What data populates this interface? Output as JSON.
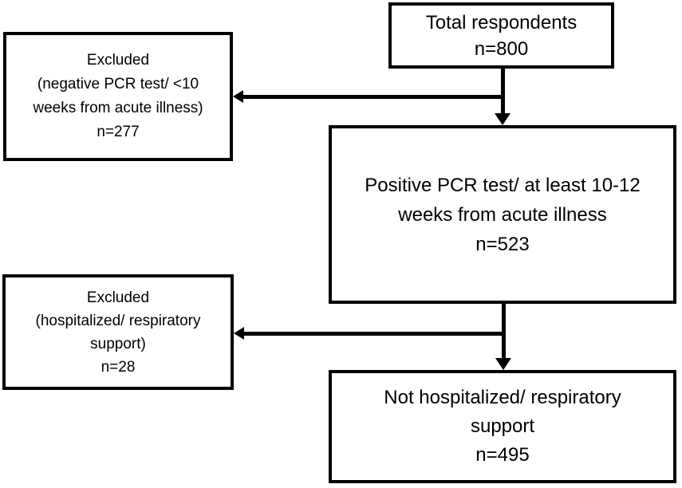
{
  "diagram_type": "participant-flowchart",
  "colors": {
    "background": "#ffffff",
    "box_border": "#000000",
    "text": "#000000",
    "arrow": "#000000"
  },
  "nodes": {
    "total_respondents": {
      "lines": [
        "Total respondents",
        "n=800"
      ]
    },
    "excluded_pcr": {
      "lines": [
        "Excluded",
        "(negative PCR test/ <10",
        "weeks from acute illness)",
        "n=277"
      ]
    },
    "positive_pcr": {
      "lines": [
        "Positive PCR test/ at least 10-12",
        "weeks from acute illness",
        "n=523"
      ]
    },
    "excluded_hospitalized": {
      "lines": [
        "Excluded",
        "(hospitalized/ respiratory",
        "support)",
        "n=28"
      ]
    },
    "not_hospitalized": {
      "lines": [
        "Not hospitalized/ respiratory",
        "support",
        "n=495"
      ]
    }
  }
}
